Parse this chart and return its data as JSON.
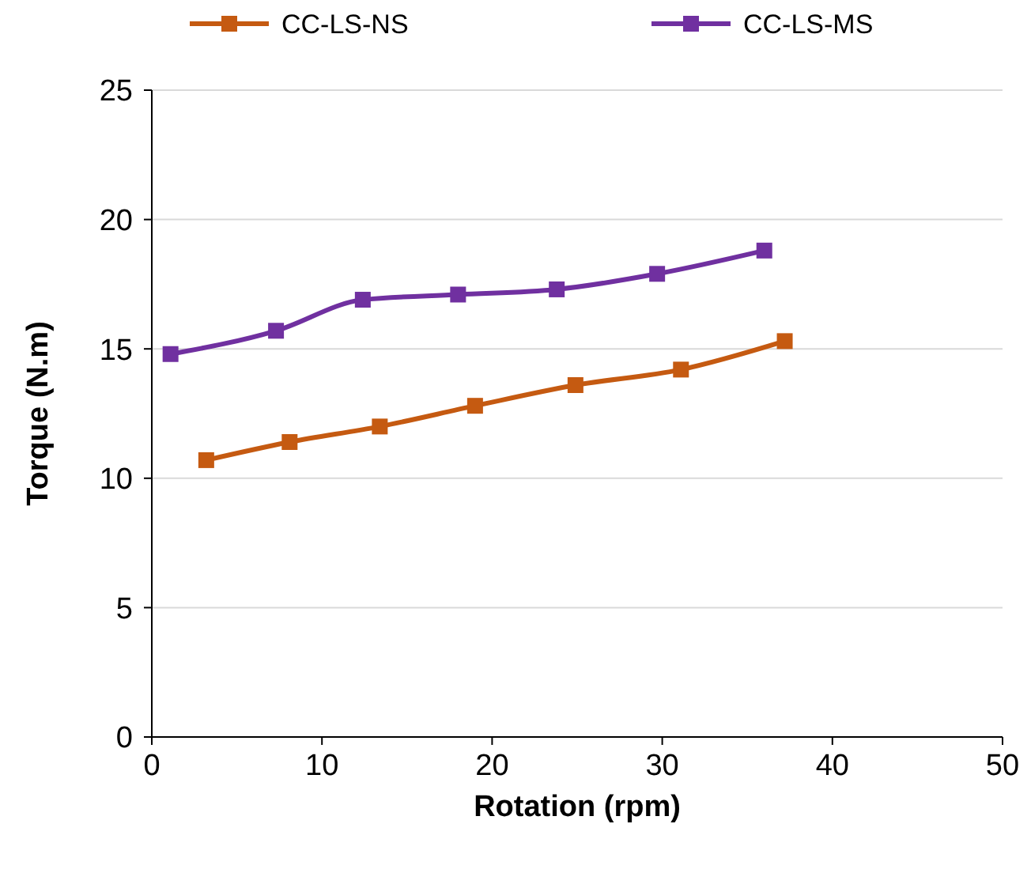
{
  "chart_data": {
    "type": "line",
    "xlabel": "Rotation (rpm)",
    "ylabel": "Torque (N.m)",
    "xlim": [
      0,
      50
    ],
    "xticks": [
      0,
      10,
      20,
      30,
      40,
      50
    ],
    "ylim": [
      0,
      25
    ],
    "yticks": [
      0,
      5,
      10,
      15,
      20,
      25
    ],
    "grid": "y",
    "legend": "top",
    "marker": "square",
    "line_style": "solid",
    "series": [
      {
        "name": "CC-LS-NS",
        "color": "#c55a11",
        "x": [
          3.2,
          8.1,
          13.4,
          19,
          24.9,
          31.1,
          37.2
        ],
        "values": [
          10.7,
          11.4,
          12,
          12.8,
          13.6,
          14.2,
          15.3
        ]
      },
      {
        "name": "CC-LS-MS",
        "color": "#7030a0",
        "x": [
          1.1,
          7.3,
          12.4,
          18,
          23.8,
          29.7,
          36
        ],
        "values": [
          14.8,
          15.7,
          16.9,
          17.1,
          17.3,
          17.9,
          18.8
        ]
      }
    ]
  }
}
